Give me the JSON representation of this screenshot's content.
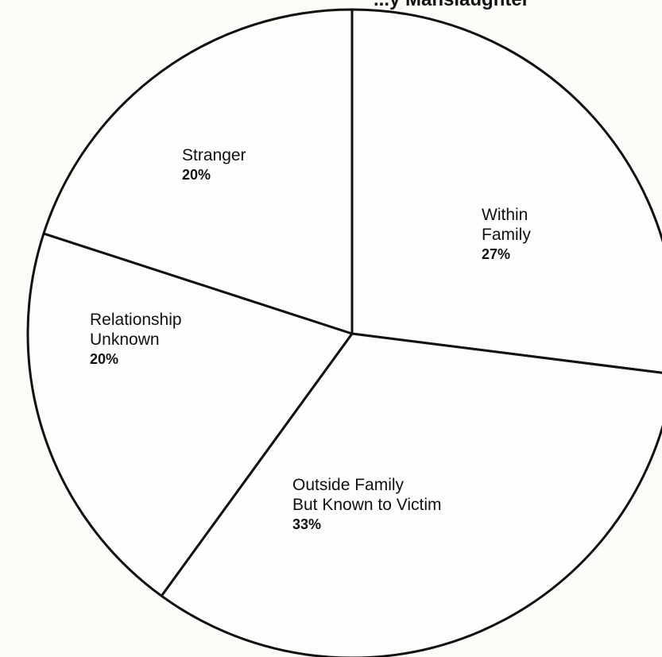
{
  "chart_data": {
    "type": "pie",
    "title_fragment": "...y Manslaughter",
    "slices": [
      {
        "label_lines": [
          "Within",
          "Family"
        ],
        "value": 27,
        "display": "27%"
      },
      {
        "label_lines": [
          "Outside Family",
          "But Known to Victim"
        ],
        "value": 33,
        "display": "33%"
      },
      {
        "label_lines": [
          "Relationship",
          "Unknown"
        ],
        "value": 20,
        "display": "20%"
      },
      {
        "label_lines": [
          "Stranger"
        ],
        "value": 20,
        "display": "20%"
      }
    ],
    "colors": {
      "background": "#fbfbf8",
      "stroke": "#111111",
      "fill": "#fdfdfb"
    }
  }
}
